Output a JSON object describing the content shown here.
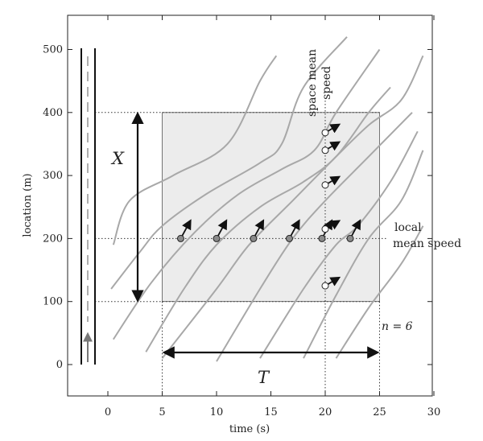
{
  "chart_data": {
    "type": "time-space diagram",
    "xlabel": "time (s)",
    "ylabel": "location (m)",
    "xlim": [
      -4,
      30
    ],
    "ylim": [
      -50,
      550
    ],
    "x_ticks": [
      0,
      5,
      10,
      15,
      20,
      25,
      30
    ],
    "y_ticks": [
      0,
      100,
      200,
      300,
      400,
      500
    ],
    "region": {
      "t_start": 5,
      "t_end": 25,
      "x_start": 100,
      "x_end": 400
    },
    "measurement_location": 200,
    "measurement_time": 20,
    "trajectories": [
      {
        "points": [
          [
            0.5,
            190
          ],
          [
            2,
            260
          ],
          [
            6,
            300
          ],
          [
            11,
            350
          ],
          [
            14,
            450
          ],
          [
            15.5,
            490
          ]
        ]
      },
      {
        "points": [
          [
            0.3,
            120
          ],
          [
            3,
            180
          ],
          [
            5,
            220
          ],
          [
            9,
            270
          ],
          [
            14,
            320
          ],
          [
            16,
            350
          ],
          [
            18,
            440
          ],
          [
            22,
            520
          ]
        ]
      },
      {
        "points": [
          [
            0.5,
            40
          ],
          [
            4,
            130
          ],
          [
            8,
            210
          ],
          [
            12,
            270
          ],
          [
            16,
            310
          ],
          [
            19,
            340
          ],
          [
            21,
            400
          ],
          [
            25,
            500
          ]
        ]
      },
      {
        "points": [
          [
            3.5,
            20
          ],
          [
            7,
            120
          ],
          [
            10,
            190
          ],
          [
            14,
            250
          ],
          [
            18,
            290
          ],
          [
            21,
            330
          ],
          [
            24,
            400
          ],
          [
            26,
            440
          ]
        ]
      },
      {
        "points": [
          [
            5,
            10
          ],
          [
            10,
            120
          ],
          [
            13,
            190
          ],
          [
            17,
            260
          ],
          [
            21,
            330
          ],
          [
            24,
            380
          ],
          [
            27,
            420
          ],
          [
            29,
            490
          ]
        ]
      },
      {
        "points": [
          [
            10,
            5
          ],
          [
            14,
            120
          ],
          [
            17,
            200
          ],
          [
            20,
            260
          ],
          [
            24,
            330
          ],
          [
            28,
            400
          ]
        ]
      },
      {
        "points": [
          [
            14,
            10
          ],
          [
            18,
            120
          ],
          [
            21,
            190
          ],
          [
            23,
            220
          ],
          [
            26,
            290
          ],
          [
            28.5,
            370
          ]
        ]
      },
      {
        "points": [
          [
            18,
            10
          ],
          [
            21,
            110
          ],
          [
            24,
            200
          ],
          [
            27,
            260
          ],
          [
            29,
            340
          ]
        ]
      },
      {
        "points": [
          [
            21,
            10
          ],
          [
            24,
            90
          ],
          [
            27,
            160
          ],
          [
            29,
            220
          ]
        ]
      }
    ],
    "local_points": [
      {
        "t": 6.7,
        "x": 200
      },
      {
        "t": 10,
        "x": 200
      },
      {
        "t": 13.4,
        "x": 200
      },
      {
        "t": 16.7,
        "x": 200
      },
      {
        "t": 19.7,
        "x": 200
      },
      {
        "t": 22.3,
        "x": 200
      }
    ],
    "space_points": [
      {
        "t": 20,
        "x": 125
      },
      {
        "t": 20,
        "x": 215
      },
      {
        "t": 20,
        "x": 285
      },
      {
        "t": 20,
        "x": 340
      },
      {
        "t": 20,
        "x": 368
      }
    ],
    "labels": {
      "X": "X",
      "T": "T",
      "space_mean_line1": "space mean",
      "space_mean_line2": "speed",
      "local_line1": "local",
      "local_line2": "mean speed",
      "n_label": "n = 6"
    }
  }
}
